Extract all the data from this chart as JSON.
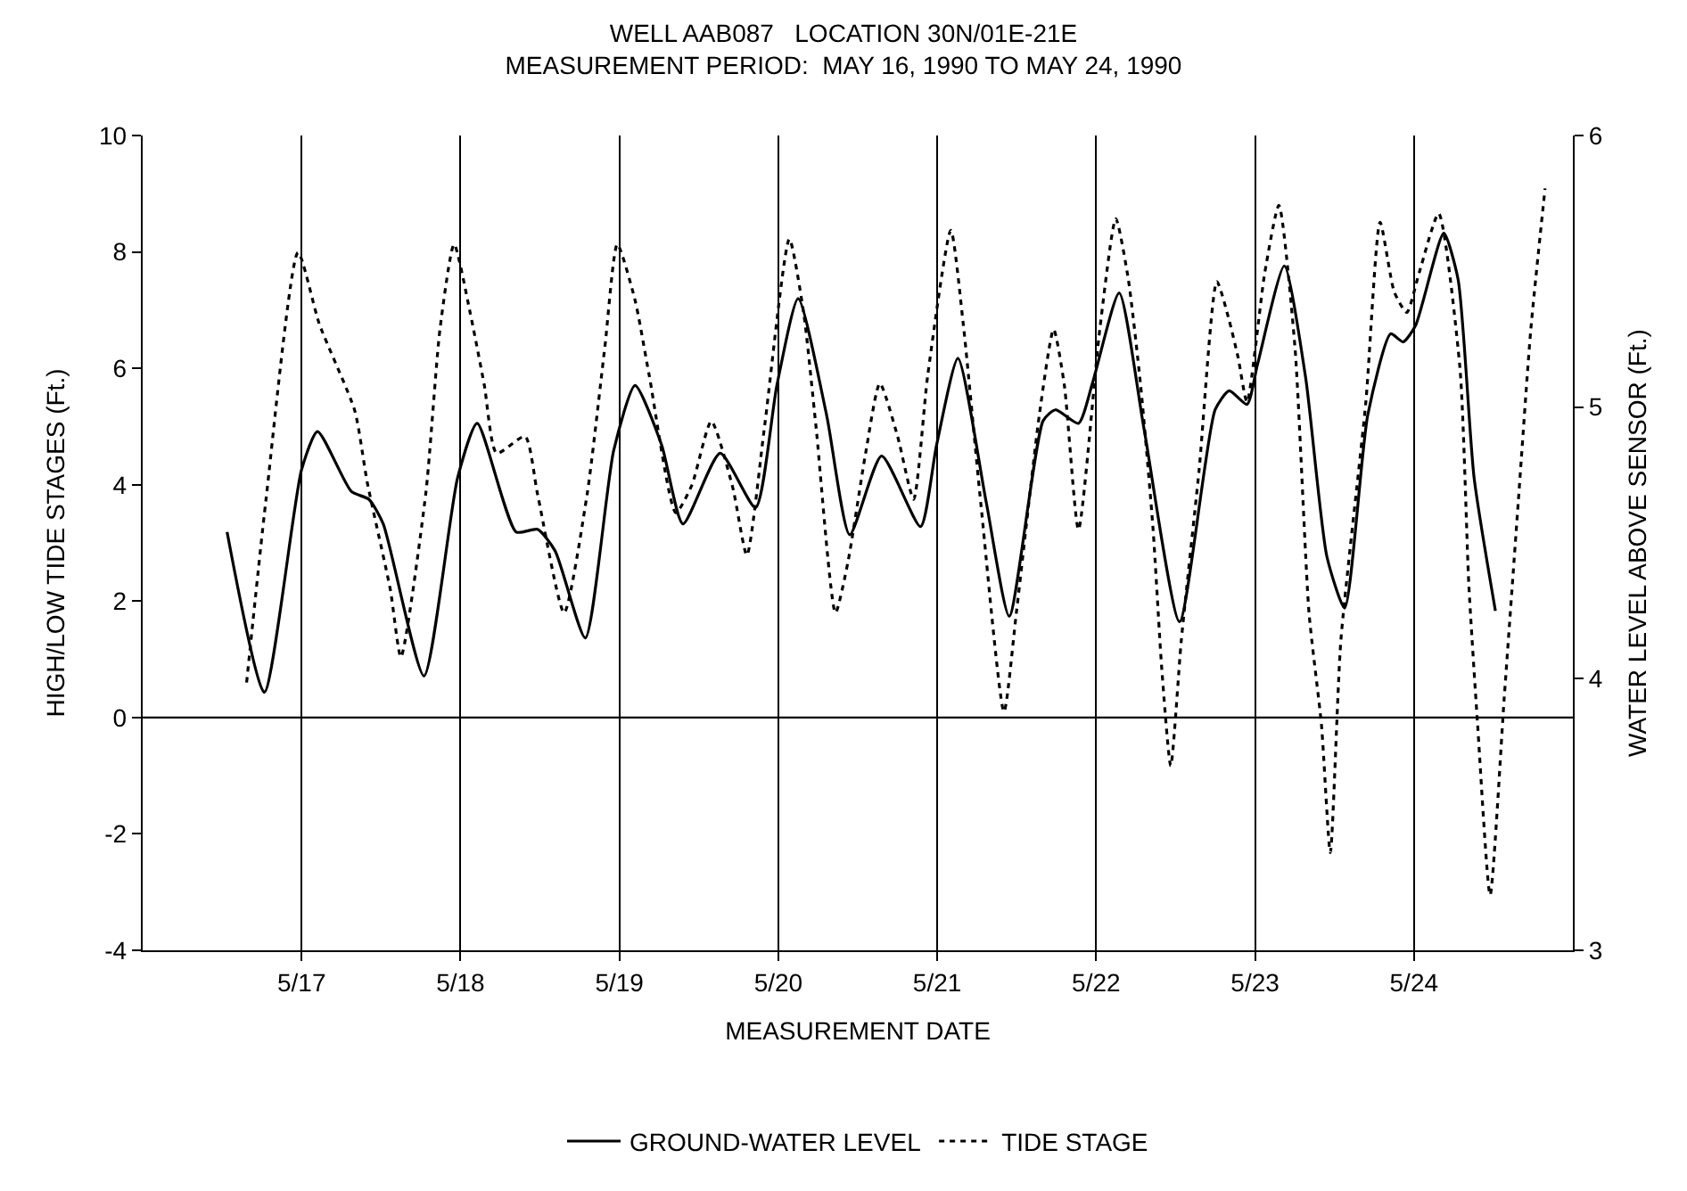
{
  "chart_data": {
    "type": "line",
    "title": "WELL AAB087   LOCATION 30N/01E-21E",
    "subtitle": "MEASUREMENT PERIOD:  MAY 16, 1990 TO MAY 24, 1990",
    "xlabel": "MEASUREMENT DATE",
    "ylabel": "HIGH/LOW TIDE STAGES (Ft.)",
    "y2label": "WATER LEVEL ABOVE SENSOR (Ft.)",
    "xlim": [
      "1990-05-16",
      "1990-05-25"
    ],
    "xticks": [
      {
        "value": "1990-05-17",
        "label": "5/17"
      },
      {
        "value": "1990-05-18",
        "label": "5/18"
      },
      {
        "value": "1990-05-19",
        "label": "5/19"
      },
      {
        "value": "1990-05-20",
        "label": "5/20"
      },
      {
        "value": "1990-05-21",
        "label": "5/21"
      },
      {
        "value": "1990-05-22",
        "label": "5/22"
      },
      {
        "value": "1990-05-23",
        "label": "5/23"
      },
      {
        "value": "1990-05-24",
        "label": "5/24"
      }
    ],
    "ylim": [
      -4,
      10
    ],
    "yticks": [
      -4,
      -2,
      0,
      2,
      4,
      6,
      8,
      10
    ],
    "y2lim": [
      3,
      6
    ],
    "y2ticks": [
      3,
      4,
      5,
      6
    ],
    "grid": "x",
    "legend": "bottom",
    "marker": "none",
    "ref_lines": [
      {
        "axis": "y",
        "value": 0,
        "color": "#000000",
        "line_style": "solid"
      }
    ],
    "series": [
      {
        "name": "GROUND-WATER LEVEL",
        "color": "#000000",
        "axis": "y2",
        "line_style": "solid",
        "x": [
          "1990-05-16T12:45",
          "1990-05-16T18:22",
          "1990-05-17T00:00",
          "1990-05-17T02:25",
          "1990-05-17T07:30",
          "1990-05-17T10:11",
          "1990-05-17T12:20",
          "1990-05-17T18:29",
          "1990-05-17T23:34",
          "1990-05-18T02:31",
          "1990-05-18T08:25",
          "1990-05-18T11:38",
          "1990-05-18T14:18",
          "1990-05-18T18:51",
          "1990-05-18T23:08",
          "1990-05-19T02:22",
          "1990-05-19T06:23",
          "1990-05-19T09:36",
          "1990-05-19T15:13",
          "1990-05-19T20:34",
          "1990-05-19T23:47",
          "1990-05-20T03:00",
          "1990-05-20T07:18",
          "1990-05-20T10:47",
          "1990-05-20T15:36",
          "1990-05-20T21:29",
          "1990-05-20T23:54",
          "1990-05-21T03:08",
          "1990-05-21T07:24",
          "1990-05-21T10:53",
          "1990-05-21T16:00",
          "1990-05-21T17:52",
          "1990-05-21T21:20",
          "1990-05-21T23:28",
          "1990-05-22T03:29",
          "1990-05-22T07:14",
          "1990-05-22T12:36",
          "1990-05-22T17:58",
          "1990-05-22T20:06",
          "1990-05-22T22:47",
          "1990-05-23T00:24",
          "1990-05-23T04:25",
          "1990-05-23T07:38",
          "1990-05-23T10:51",
          "1990-05-23T13:32",
          "1990-05-23T17:01",
          "1990-05-23T20:29",
          "1990-05-23T22:22",
          "1990-05-24T00:14",
          "1990-05-24T04:30",
          "1990-05-24T06:40",
          "1990-05-24T09:05",
          "1990-05-24T12:18"
        ],
        "values": [
          4.54,
          3.95,
          4.77,
          4.91,
          4.69,
          4.66,
          4.57,
          4.01,
          4.74,
          4.94,
          4.54,
          4.55,
          4.47,
          4.15,
          4.84,
          5.08,
          4.86,
          4.57,
          4.83,
          4.63,
          5.08,
          5.4,
          4.97,
          4.53,
          4.82,
          4.56,
          4.86,
          5.18,
          4.65,
          4.23,
          4.95,
          4.99,
          4.94,
          5.09,
          5.42,
          4.92,
          4.21,
          4.99,
          5.06,
          5.01,
          5.16,
          5.52,
          5.11,
          4.45,
          4.26,
          4.97,
          5.27,
          5.24,
          5.3,
          5.64,
          5.47,
          4.74,
          4.25
        ]
      },
      {
        "name": "TIDE STAGE",
        "color": "#000000",
        "line_style": "dotted",
        "x": [
          "1990-05-16T15:42",
          "1990-05-16T18:38",
          "1990-05-16T23:28",
          "1990-05-17T02:41",
          "1990-05-17T08:02",
          "1990-05-17T09:55",
          "1990-05-17T13:24",
          "1990-05-17T15:00",
          "1990-05-17T18:45",
          "1990-05-17T20:54",
          "1990-05-17T23:02",
          "1990-05-18T01:27",
          "1990-05-18T03:36",
          "1990-05-18T05:28",
          "1990-05-18T09:45",
          "1990-05-18T11:38",
          "1990-05-18T15:39",
          "1990-05-18T19:08",
          "1990-05-18T21:49",
          "1990-05-18T23:41",
          "1990-05-19T02:22",
          "1990-05-19T04:30",
          "1990-05-19T08:31",
          "1990-05-19T10:56",
          "1990-05-19T13:53",
          "1990-05-19T17:06",
          "1990-05-19T19:15",
          "1990-05-19T21:56",
          "1990-05-20T01:40",
          "1990-05-20T03:49",
          "1990-05-20T05:41",
          "1990-05-20T08:38",
          "1990-05-20T10:31",
          "1990-05-20T13:11",
          "1990-05-20T15:20",
          "1990-05-20T18:01",
          "1990-05-20T20:26",
          "1990-05-20T22:34",
          "1990-05-21T02:03",
          "1990-05-21T03:56",
          "1990-05-21T06:36",
          "1990-05-21T10:05",
          "1990-05-21T11:57",
          "1990-05-21T15:26",
          "1990-05-21T17:35",
          "1990-05-21T19:12",
          "1990-05-21T21:20",
          "1990-05-22T00:33",
          "1990-05-22T02:58",
          "1990-05-22T04:50",
          "1990-05-22T06:43",
          "1990-05-22T08:35",
          "1990-05-22T09:55",
          "1990-05-22T11:16",
          "1990-05-22T12:52",
          "1990-05-22T15:33",
          "1990-05-22T18:14",
          "1990-05-22T20:06",
          "1990-05-22T21:27",
          "1990-05-22T22:47",
          "1990-05-23T01:28",
          "1990-05-23T03:36",
          "1990-05-23T06:01",
          "1990-05-23T08:09",
          "1990-05-23T10:02",
          "1990-05-23T11:22",
          "1990-05-23T12:58",
          "1990-05-23T16:44",
          "1990-05-23T18:53",
          "1990-05-23T21:02",
          "1990-05-23T22:55",
          "1990-05-24T00:47",
          "1990-05-24T03:44",
          "1990-05-24T06:57",
          "1990-05-24T08:17",
          "1990-05-24T09:37",
          "1990-05-24T11:30",
          "1990-05-24T13:38",
          "1990-05-24T15:47",
          "1990-05-24T17:39",
          "1990-05-24T19:48"
        ],
        "values": [
          0.6,
          3.75,
          7.99,
          6.76,
          5.27,
          4.04,
          2.2,
          1.04,
          3.84,
          6.67,
          8.13,
          6.96,
          5.71,
          4.54,
          4.83,
          3.84,
          1.8,
          3.84,
          6.38,
          8.13,
          7.17,
          5.88,
          3.52,
          3.99,
          5.09,
          3.96,
          2.79,
          5.01,
          8.22,
          6.96,
          5.01,
          1.8,
          2.67,
          4.54,
          5.74,
          4.83,
          3.75,
          5.88,
          8.37,
          6.76,
          3.66,
          0.1,
          1.8,
          5.21,
          6.67,
          5.71,
          3.23,
          6.67,
          8.57,
          7.55,
          5.71,
          3.26,
          0.83,
          -0.83,
          1.33,
          4.25,
          7.49,
          6.82,
          6.18,
          5.42,
          7.64,
          8.8,
          6.38,
          1.8,
          -0.13,
          -2.32,
          1.33,
          5.42,
          8.51,
          7.31,
          6.96,
          7.64,
          8.66,
          6.0,
          2.29,
          -0.13,
          -3.05,
          0.34,
          3.75,
          6.67,
          9.09
        ]
      }
    ]
  }
}
